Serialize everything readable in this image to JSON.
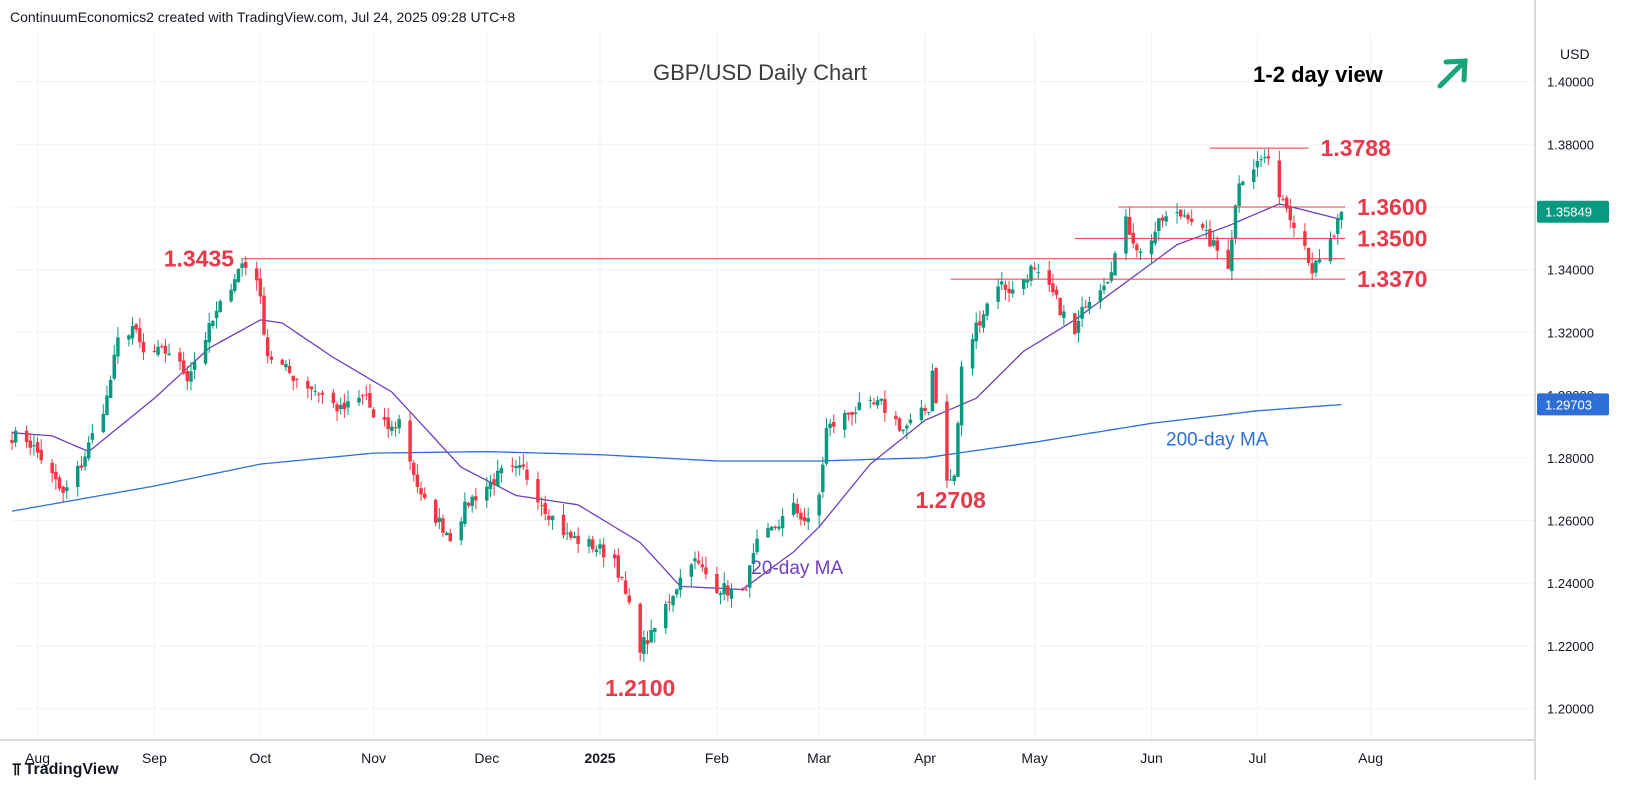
{
  "header": {
    "credit": "ContinuumEconomics2 created with TradingView.com, Jul 24, 2025 09:28 UTC+8"
  },
  "footer": {
    "brand": "TradingView",
    "brand_icon": "tradingview-logo-icon"
  },
  "chart_data": {
    "type": "candlestick",
    "title": "GBP/USD Daily Chart",
    "view_label": "1-2 day view",
    "view_icon": "arrow-up-right-icon",
    "currency": "USD",
    "ylim": [
      1.19,
      1.4155
    ],
    "y_ticks": [
      "1.40000",
      "1.38000",
      "1.36000",
      "1.34000",
      "1.32000",
      "1.30000",
      "1.28000",
      "1.26000",
      "1.24000",
      "1.22000",
      "1.20000"
    ],
    "x_ticks": [
      {
        "label": "Aug",
        "date": "2024-08-01",
        "bold": false
      },
      {
        "label": "Sep",
        "date": "2024-09-02",
        "bold": false
      },
      {
        "label": "Oct",
        "date": "2024-10-01",
        "bold": false
      },
      {
        "label": "Nov",
        "date": "2024-11-01",
        "bold": false
      },
      {
        "label": "Dec",
        "date": "2024-12-02",
        "bold": false
      },
      {
        "label": "2025",
        "date": "2025-01-02",
        "bold": true
      },
      {
        "label": "Feb",
        "date": "2025-02-03",
        "bold": false
      },
      {
        "label": "Mar",
        "date": "2025-03-03",
        "bold": false
      },
      {
        "label": "Apr",
        "date": "2025-04-01",
        "bold": false
      },
      {
        "label": "May",
        "date": "2025-05-01",
        "bold": false
      },
      {
        "label": "Jun",
        "date": "2025-06-02",
        "bold": false
      },
      {
        "label": "Jul",
        "date": "2025-07-01",
        "bold": false
      },
      {
        "label": "Aug",
        "date": "2025-08-01",
        "bold": false
      }
    ],
    "x_range": [
      "2024-07-25",
      "2025-09-15"
    ],
    "price_anchors": [
      [
        "2024-07-25",
        1.287
      ],
      [
        "2024-07-29",
        1.286
      ],
      [
        "2024-08-02",
        1.28
      ],
      [
        "2024-08-06",
        1.272
      ],
      [
        "2024-08-08",
        1.268
      ],
      [
        "2024-08-13",
        1.278
      ],
      [
        "2024-08-20",
        1.299
      ],
      [
        "2024-08-23",
        1.317
      ],
      [
        "2024-08-27",
        1.322
      ],
      [
        "2024-08-30",
        1.313
      ],
      [
        "2024-09-06",
        1.314
      ],
      [
        "2024-09-11",
        1.306
      ],
      [
        "2024-09-17",
        1.321
      ],
      [
        "2024-09-24",
        1.338
      ],
      [
        "2024-09-26",
        1.342
      ],
      [
        "2024-09-30",
        1.338
      ],
      [
        "2024-10-03",
        1.313
      ],
      [
        "2024-10-10",
        1.306
      ],
      [
        "2024-10-17",
        1.301
      ],
      [
        "2024-10-23",
        1.295
      ],
      [
        "2024-10-30",
        1.3
      ],
      [
        "2024-11-01",
        1.292
      ],
      [
        "2024-11-06",
        1.289
      ],
      [
        "2024-11-08",
        1.292
      ],
      [
        "2024-11-14",
        1.267
      ],
      [
        "2024-11-22",
        1.255
      ],
      [
        "2024-11-27",
        1.266
      ],
      [
        "2024-12-06",
        1.275
      ],
      [
        "2024-12-12",
        1.276
      ],
      [
        "2024-12-18",
        1.264
      ],
      [
        "2024-12-24",
        1.255
      ],
      [
        "2024-12-31",
        1.252
      ],
      [
        "2025-01-06",
        1.248
      ],
      [
        "2025-01-13",
        1.22
      ],
      [
        "2025-01-16",
        1.223
      ],
      [
        "2025-01-21",
        1.235
      ],
      [
        "2025-01-27",
        1.248
      ],
      [
        "2025-02-03",
        1.239
      ],
      [
        "2025-02-10",
        1.236
      ],
      [
        "2025-02-14",
        1.252
      ],
      [
        "2025-02-24",
        1.264
      ],
      [
        "2025-02-28",
        1.259
      ],
      [
        "2025-03-03",
        1.268
      ],
      [
        "2025-03-05",
        1.289
      ],
      [
        "2025-03-12",
        1.295
      ],
      [
        "2025-03-20",
        1.297
      ],
      [
        "2025-03-26",
        1.289
      ],
      [
        "2025-04-02",
        1.296
      ],
      [
        "2025-04-03",
        1.308
      ],
      [
        "2025-04-07",
        1.272
      ],
      [
        "2025-04-09",
        1.274
      ],
      [
        "2025-04-11",
        1.308
      ],
      [
        "2025-04-15",
        1.322
      ],
      [
        "2025-04-21",
        1.336
      ],
      [
        "2025-04-25",
        1.333
      ],
      [
        "2025-04-30",
        1.34
      ],
      [
        "2025-05-06",
        1.332
      ],
      [
        "2025-05-12",
        1.319
      ],
      [
        "2025-05-15",
        1.33
      ],
      [
        "2025-05-21",
        1.338
      ],
      [
        "2025-05-26",
        1.355
      ],
      [
        "2025-05-30",
        1.345
      ],
      [
        "2025-06-05",
        1.356
      ],
      [
        "2025-06-12",
        1.358
      ],
      [
        "2025-06-20",
        1.346
      ],
      [
        "2025-06-23",
        1.342
      ],
      [
        "2025-06-26",
        1.369
      ],
      [
        "2025-07-01",
        1.374
      ],
      [
        "2025-07-03",
        1.376
      ],
      [
        "2025-07-07",
        1.365
      ],
      [
        "2025-07-10",
        1.358
      ],
      [
        "2025-07-14",
        1.348
      ],
      [
        "2025-07-16",
        1.34
      ],
      [
        "2025-07-18",
        1.342
      ],
      [
        "2025-07-22",
        1.351
      ],
      [
        "2025-07-24",
        1.3585
      ]
    ],
    "ma200_anchors": [
      [
        "2024-07-25",
        1.263
      ],
      [
        "2024-09-02",
        1.271
      ],
      [
        "2024-10-01",
        1.278
      ],
      [
        "2024-11-01",
        1.2815
      ],
      [
        "2024-12-02",
        1.282
      ],
      [
        "2025-01-02",
        1.281
      ],
      [
        "2025-02-03",
        1.279
      ],
      [
        "2025-03-03",
        1.279
      ],
      [
        "2025-04-01",
        1.28
      ],
      [
        "2025-05-01",
        1.285
      ],
      [
        "2025-06-02",
        1.291
      ],
      [
        "2025-07-01",
        1.295
      ],
      [
        "2025-07-24",
        1.297
      ]
    ],
    "ma20_anchors": [
      [
        "2024-07-25",
        1.288
      ],
      [
        "2024-08-05",
        1.287
      ],
      [
        "2024-08-15",
        1.282
      ],
      [
        "2024-09-02",
        1.299
      ],
      [
        "2024-09-17",
        1.315
      ],
      [
        "2024-10-01",
        1.324
      ],
      [
        "2024-10-07",
        1.323
      ],
      [
        "2024-10-21",
        1.312
      ],
      [
        "2024-11-06",
        1.301
      ],
      [
        "2024-11-25",
        1.277
      ],
      [
        "2024-12-10",
        1.268
      ],
      [
        "2024-12-27",
        1.265
      ],
      [
        "2025-01-13",
        1.253
      ],
      [
        "2025-01-24",
        1.239
      ],
      [
        "2025-02-10",
        1.238
      ],
      [
        "2025-02-24",
        1.25
      ],
      [
        "2025-03-03",
        1.258
      ],
      [
        "2025-03-17",
        1.278
      ],
      [
        "2025-04-01",
        1.292
      ],
      [
        "2025-04-15",
        1.299
      ],
      [
        "2025-04-28",
        1.314
      ],
      [
        "2025-05-12",
        1.324
      ],
      [
        "2025-05-26",
        1.336
      ],
      [
        "2025-06-09",
        1.348
      ],
      [
        "2025-06-23",
        1.354
      ],
      [
        "2025-07-07",
        1.361
      ],
      [
        "2025-07-24",
        1.356
      ]
    ],
    "last_price": {
      "value": 1.35849,
      "label": "1.35849"
    },
    "ma200_last": {
      "value": 1.29703,
      "label": "1.29703"
    },
    "levels": [
      {
        "value": 1.3788,
        "label": "1.3788",
        "from": "2025-06-18",
        "to": "2025-07-15",
        "label_side": "right"
      },
      {
        "value": 1.36,
        "label": "1.3600",
        "from": "2025-05-24",
        "to": "2025-07-25",
        "label_side": "right"
      },
      {
        "value": 1.35,
        "label": "1.3500",
        "from": "2025-05-12",
        "to": "2025-07-25",
        "label_side": "right"
      },
      {
        "value": 1.3435,
        "label": "1.3435",
        "from": "2024-09-26",
        "to": "2025-07-25",
        "label_side": "left"
      },
      {
        "value": 1.337,
        "label": "1.3370",
        "from": "2025-04-08",
        "to": "2025-07-25",
        "label_side": "right"
      }
    ],
    "annotations": [
      {
        "label": "1.2100",
        "date": "2025-01-13",
        "value": 1.204
      },
      {
        "label": "1.2708",
        "date": "2025-04-08",
        "value": 1.264
      },
      {
        "label": "20-day MA",
        "date": "2025-02-25",
        "value": 1.243,
        "color": "#6e3fbf"
      },
      {
        "label": "200-day MA",
        "date": "2025-06-20",
        "value": 1.284,
        "color": "#2d6fd6"
      }
    ],
    "colors": {
      "up": "#089981",
      "down": "#f23645",
      "level": "#f23645",
      "ma20": "#6e3fbf",
      "ma200": "#2d6fd6",
      "label": "#e8394a"
    }
  }
}
